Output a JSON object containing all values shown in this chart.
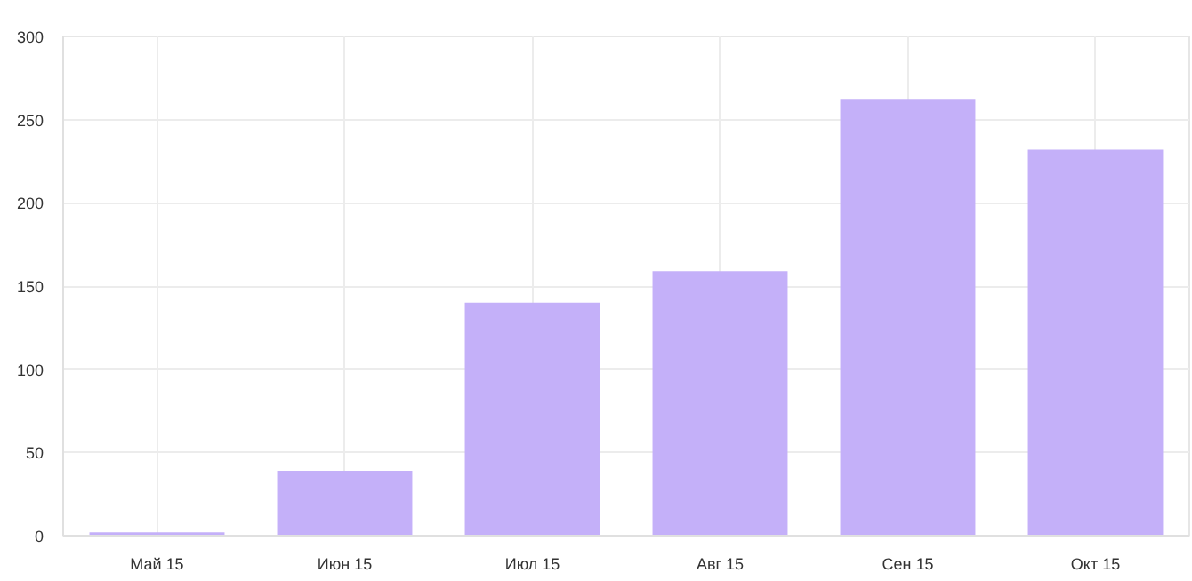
{
  "chart_data": {
    "type": "bar",
    "categories": [
      "Май 15",
      "Июн 15",
      "Июл 15",
      "Авг 15",
      "Сен 15",
      "Окт 15"
    ],
    "values": [
      2,
      39,
      140,
      159,
      262,
      232
    ],
    "color": "#c4b0f9",
    "ylim": [
      0,
      300
    ],
    "yticks": [
      0,
      50,
      100,
      150,
      200,
      250,
      300
    ],
    "grid": true
  }
}
